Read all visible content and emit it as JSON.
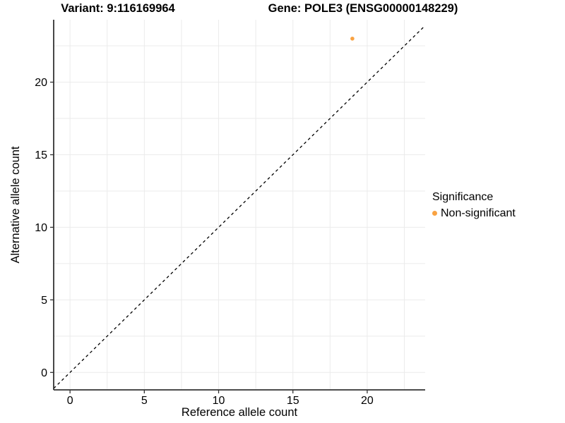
{
  "chart_data": {
    "type": "scatter",
    "title_left": "Variant: 9:116169964",
    "title_right": "Gene: POLE3 (ENSG00000148229)",
    "xlabel": "Reference allele count",
    "ylabel": "Alternative allele count",
    "xlim": [
      -1.1,
      23.9
    ],
    "ylim": [
      -1.2,
      24.3
    ],
    "x_ticks": [
      0,
      5,
      10,
      15,
      20
    ],
    "y_ticks": [
      0,
      5,
      10,
      15,
      20
    ],
    "grid": "on",
    "grid_interval": 2.5,
    "grid_color": "#EBEBEB",
    "axis_color": "#333333",
    "text_color": "#000000",
    "background_color": "#FFFFFF",
    "identity_line": {
      "style": "dashed",
      "from": -1.1,
      "to": 23.9,
      "color": "#000000"
    },
    "series": [
      {
        "name": "Non-significant",
        "color": "#F9A242",
        "points": [
          {
            "x": 19,
            "y": 23
          }
        ]
      }
    ],
    "legend": {
      "title": "Significance",
      "position": "right",
      "items": [
        {
          "label": "Non-significant",
          "color": "#F9A242"
        }
      ]
    }
  }
}
